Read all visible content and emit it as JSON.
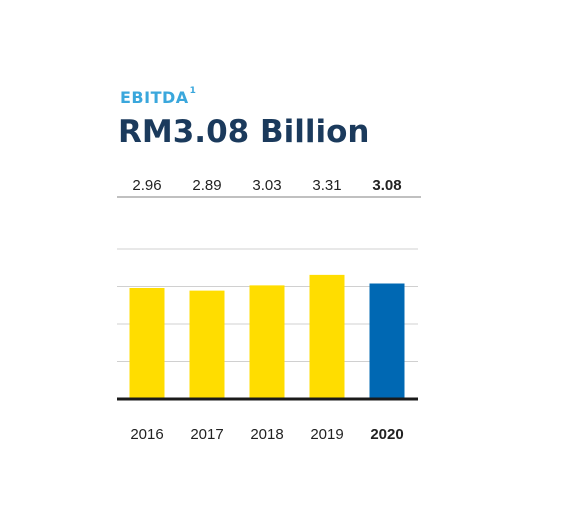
{
  "header": {
    "label": "EBITDA",
    "label_superscript": "1",
    "value": "RM3.08 Billion"
  },
  "colors": {
    "label": "#3aa7dc",
    "headline": "#1b3a5c",
    "bar_default": "#ffdd00",
    "bar_highlight": "#0068b3",
    "gridline": "#d0d0d0",
    "baseline": "#1a1a1a"
  },
  "chart_data": {
    "type": "bar",
    "categories": [
      "2016",
      "2017",
      "2018",
      "2019",
      "2020"
    ],
    "values": [
      2.96,
      2.89,
      3.03,
      3.31,
      3.08
    ],
    "value_labels": [
      "2.96",
      "2.89",
      "3.03",
      "3.31",
      "3.08"
    ],
    "highlight_index": 4,
    "title": "RM3.08 Billion",
    "xlabel": "",
    "ylabel": "",
    "ylim": [
      0,
      4
    ],
    "grid": true,
    "legend": "none"
  }
}
